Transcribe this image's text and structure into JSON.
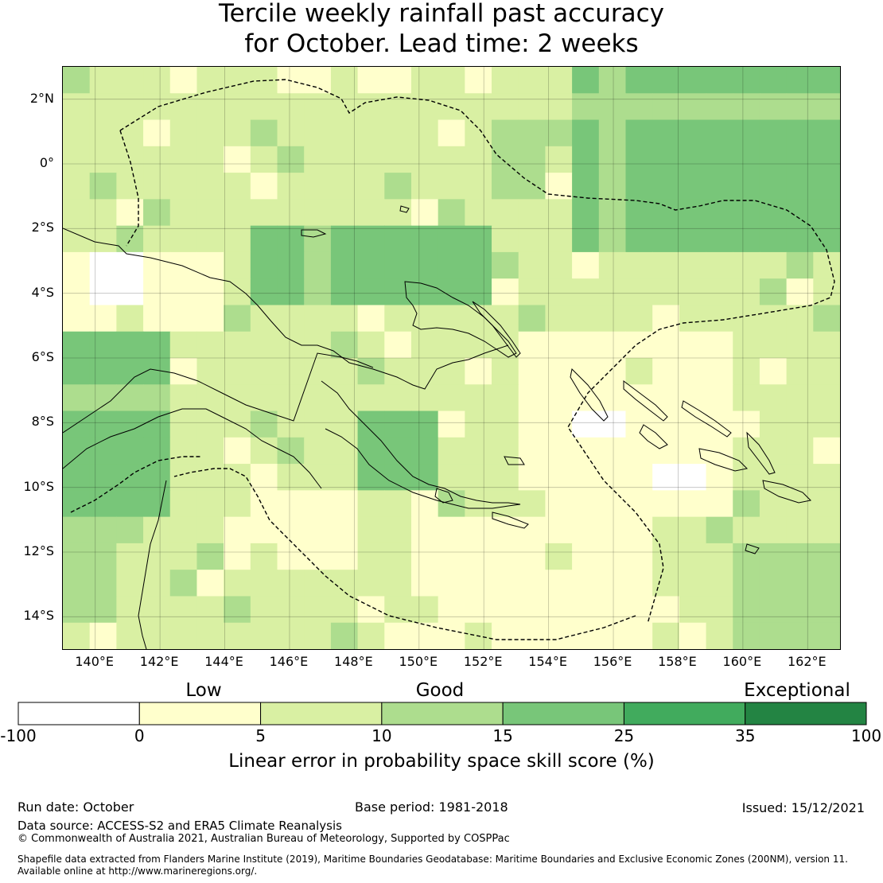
{
  "title_line1": "Tercile weekly rainfall past accuracy",
  "title_line2": "for October. Lead time: 2 weeks",
  "map": {
    "lon_min": 139.0,
    "lon_max": 163.0,
    "lat_min": -15.0,
    "lat_max": 3.0,
    "lon_ticks": [
      {
        "value": 140,
        "label": "140°E"
      },
      {
        "value": 142,
        "label": "142°E"
      },
      {
        "value": 144,
        "label": "144°E"
      },
      {
        "value": 146,
        "label": "146°E"
      },
      {
        "value": 148,
        "label": "148°E"
      },
      {
        "value": 150,
        "label": "150°E"
      },
      {
        "value": 152,
        "label": "152°E"
      },
      {
        "value": 154,
        "label": "154°E"
      },
      {
        "value": 156,
        "label": "156°E"
      },
      {
        "value": 158,
        "label": "158°E"
      },
      {
        "value": 160,
        "label": "160°E"
      },
      {
        "value": 162,
        "label": "162°E"
      }
    ],
    "lat_ticks": [
      {
        "value": 2,
        "label": "2°N"
      },
      {
        "value": 0,
        "label": "0°"
      },
      {
        "value": -2,
        "label": "2°S"
      },
      {
        "value": -4,
        "label": "4°S"
      },
      {
        "value": -6,
        "label": "6°S"
      },
      {
        "value": -8,
        "label": "8°S"
      },
      {
        "value": -10,
        "label": "10°S"
      },
      {
        "value": -12,
        "label": "12°S"
      },
      {
        "value": -14,
        "label": "14°S"
      }
    ]
  },
  "colorbar": {
    "category_labels": [
      "Low",
      "Good",
      "Exceptional"
    ],
    "boundaries": [
      "-100",
      "0",
      "5",
      "10",
      "15",
      "25",
      "35",
      "100"
    ],
    "colors": [
      "#ffffff",
      "#ffffcc",
      "#d9f0a3",
      "#addd8e",
      "#78c679",
      "#41ab5d",
      "#238443"
    ],
    "label": "Linear error in probability space skill score (%)"
  },
  "chart_data": {
    "type": "heatmap",
    "title": "Tercile weekly rainfall past accuracy for October. Lead time: 2 weeks",
    "x_range_deg_e": [
      139,
      163
    ],
    "y_range_deg": [
      -15,
      3
    ],
    "value_classes": [
      "<0",
      "0-5",
      "5-10",
      "10-15",
      "15-25",
      "25-35",
      ">35"
    ],
    "dominant_class_by_region": {
      "north_east_pacific": "15-25",
      "north_west_papua": "10-15",
      "west_papua_south": "15-25",
      "central_coral_sea": "0-5",
      "solomon_islands": "5-10",
      "far_north_queensland": "5-10"
    },
    "colorbar_label": "Linear error in probability space skill score (%)"
  },
  "footer": {
    "run_date": "Run date: October",
    "base_period": "Base period: 1981-2018",
    "issued": "Issued: 15/12/2021",
    "data_source": "Data source: ACCESS-S2 and ERA5 Climate Reanalysis",
    "copyright": "© Commonwealth of Australia 2021, Australian Bureau of Meteorology, Supported by COSPPac",
    "shapefile_line1": "Shapefile data extracted from Flanders Marine Institute (2019), Maritime Boundaries Geodatabase: Maritime Boundaries and Exclusive Economic Zones (200NM), version 11.",
    "shapefile_line2": "Available online at http://www.marineregions.org/."
  }
}
